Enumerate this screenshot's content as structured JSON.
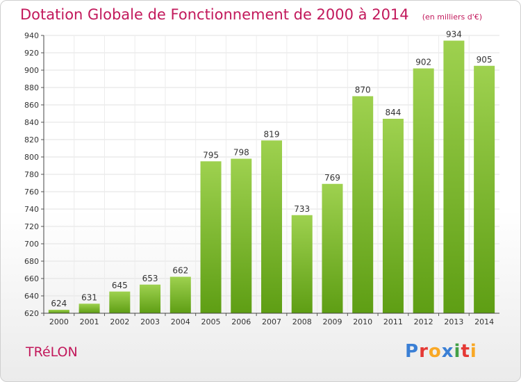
{
  "header": {
    "title": "Dotation Globale de Fonctionnement de 2000 à 2014",
    "subtitle": "(en milliers d'€)"
  },
  "footer": {
    "town": "TRéLON",
    "logo_letters": [
      "P",
      "r",
      "o",
      "x",
      "i",
      "t",
      "i"
    ],
    "logo_colors": [
      "#3a7fd5",
      "#e53935",
      "#f9a825",
      "#3a7fd5",
      "#43a047",
      "#e53935",
      "#f9a825"
    ]
  },
  "chart_data": {
    "type": "bar",
    "title": "Dotation Globale de Fonctionnement de 2000 à 2014",
    "subtitle": "(en milliers d'€)",
    "xlabel": "",
    "ylabel": "",
    "categories": [
      "2000",
      "2001",
      "2002",
      "2003",
      "2004",
      "2005",
      "2006",
      "2007",
      "2008",
      "2009",
      "2010",
      "2011",
      "2012",
      "2013",
      "2014"
    ],
    "values": [
      624,
      631,
      645,
      653,
      662,
      795,
      798,
      819,
      733,
      769,
      870,
      844,
      902,
      934,
      905
    ],
    "ylim": [
      620,
      940
    ],
    "yticks": [
      620,
      640,
      660,
      680,
      700,
      720,
      740,
      760,
      780,
      800,
      820,
      840,
      860,
      880,
      900,
      920,
      940
    ],
    "grid": true,
    "bar_color": "#8cc63f",
    "bar_color_dark": "#5e9e14"
  }
}
